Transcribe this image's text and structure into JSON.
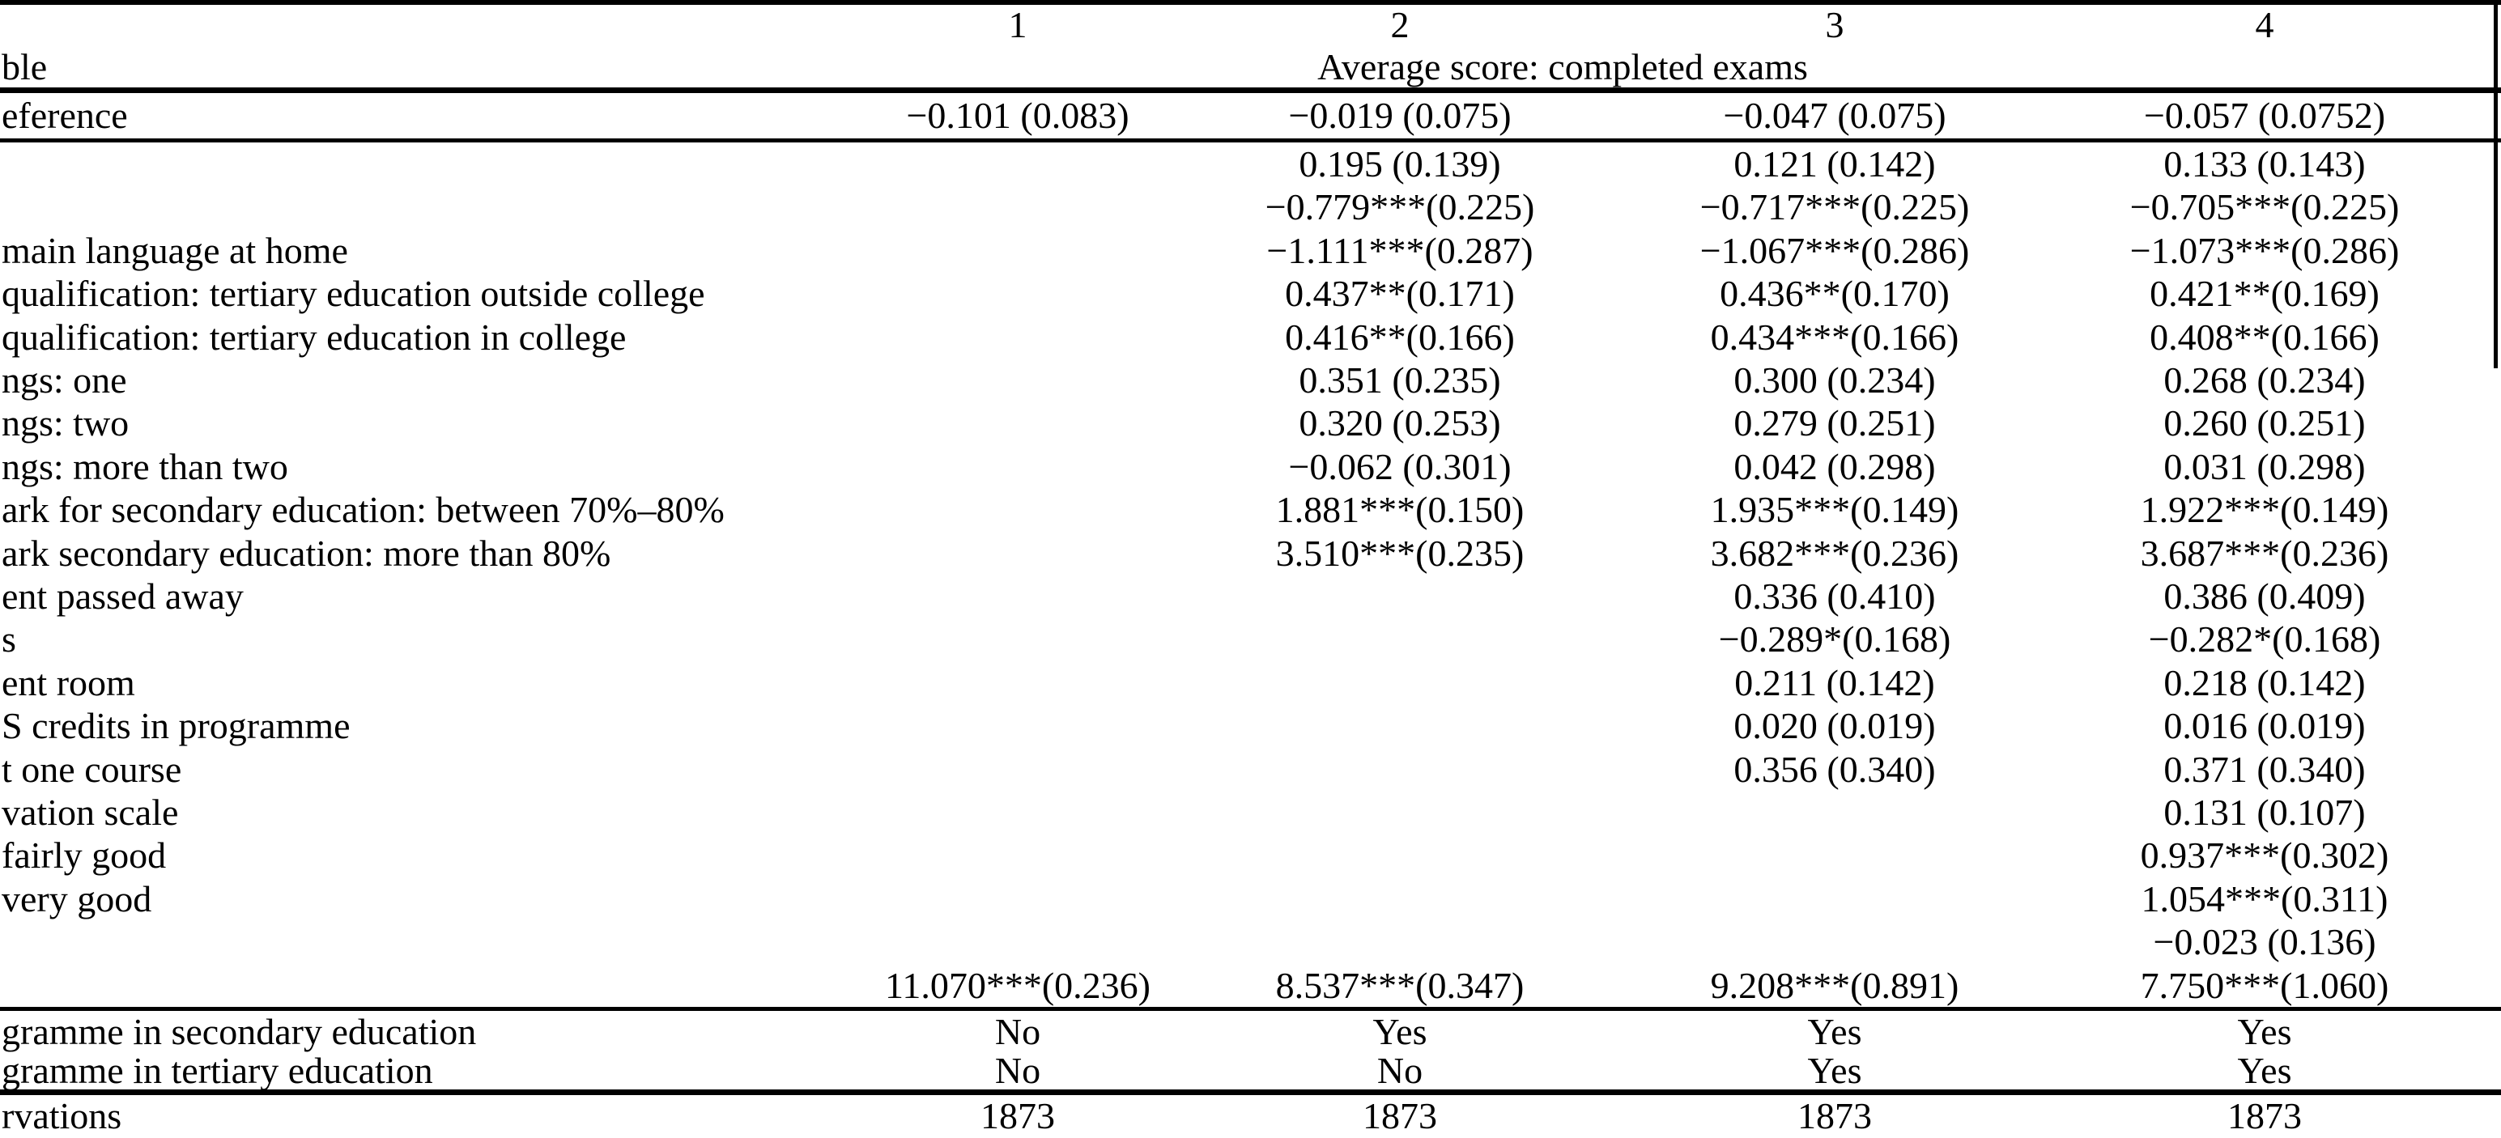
{
  "table": {
    "kind": "regression-table",
    "col_headers": [
      "1",
      "2",
      "3",
      "4"
    ],
    "left_header": "ble",
    "span_header": "Average score: completed exams",
    "top_row": {
      "label": "eference",
      "values": [
        "−0.101 (0.083)",
        "−0.019 (0.075)",
        "−0.047 (0.075)",
        "−0.057 (0.0752)"
      ]
    },
    "body_rows": [
      {
        "label": "",
        "values": [
          "",
          "0.195 (0.139)",
          "0.121 (0.142)",
          "0.133 (0.143)"
        ]
      },
      {
        "label": "",
        "values": [
          "",
          "−0.779***(0.225)",
          "−0.717***(0.225)",
          "−0.705***(0.225)"
        ]
      },
      {
        "label": "main language at home",
        "values": [
          "",
          "−1.111***(0.287)",
          "−1.067***(0.286)",
          "−1.073***(0.286)"
        ]
      },
      {
        "label": "qualification: tertiary education outside college",
        "values": [
          "",
          "0.437**(0.171)",
          "0.436**(0.170)",
          "0.421**(0.169)"
        ]
      },
      {
        "label": "qualification: tertiary education in college",
        "values": [
          "",
          "0.416**(0.166)",
          "0.434***(0.166)",
          "0.408**(0.166)"
        ]
      },
      {
        "label": "ngs: one",
        "values": [
          "",
          "0.351 (0.235)",
          "0.300 (0.234)",
          "0.268 (0.234)"
        ]
      },
      {
        "label": "ngs: two",
        "values": [
          "",
          "0.320 (0.253)",
          "0.279 (0.251)",
          "0.260 (0.251)"
        ]
      },
      {
        "label": "ngs: more than two",
        "values": [
          "",
          "−0.062 (0.301)",
          "0.042 (0.298)",
          "0.031 (0.298)"
        ]
      },
      {
        "label": "ark for secondary education: between 70%–80%",
        "values": [
          "",
          "1.881***(0.150)",
          "1.935***(0.149)",
          "1.922***(0.149)"
        ]
      },
      {
        "label": "ark secondary education: more than 80%",
        "values": [
          "",
          "3.510***(0.235)",
          "3.682***(0.236)",
          "3.687***(0.236)"
        ]
      },
      {
        "label": "ent passed away",
        "values": [
          "",
          "",
          "0.336 (0.410)",
          "0.386 (0.409)"
        ]
      },
      {
        "label": "s",
        "values": [
          "",
          "",
          "−0.289*(0.168)",
          "−0.282*(0.168)"
        ]
      },
      {
        "label": "ent room",
        "values": [
          "",
          "",
          "0.211 (0.142)",
          "0.218 (0.142)"
        ]
      },
      {
        "label": "S credits in programme",
        "values": [
          "",
          "",
          "0.020 (0.019)",
          "0.016 (0.019)"
        ]
      },
      {
        "label": "t one course",
        "values": [
          "",
          "",
          "0.356 (0.340)",
          "0.371 (0.340)"
        ]
      },
      {
        "label": "vation scale",
        "values": [
          "",
          "",
          "",
          "0.131 (0.107)"
        ]
      },
      {
        "label": "fairly good",
        "values": [
          "",
          "",
          "",
          "0.937***(0.302)"
        ]
      },
      {
        "label": "very good",
        "values": [
          "",
          "",
          "",
          "1.054***(0.311)"
        ]
      },
      {
        "label": "",
        "values": [
          "",
          "",
          "",
          "−0.023 (0.136)"
        ]
      },
      {
        "label": "",
        "values": [
          "11.070***(0.236)",
          "8.537***(0.347)",
          "9.208***(0.891)",
          "7.750***(1.060)"
        ]
      }
    ],
    "footer_rows": [
      {
        "label": "gramme in secondary education",
        "values": [
          "No",
          "Yes",
          "Yes",
          "Yes"
        ]
      },
      {
        "label": "gramme in tertiary education",
        "values": [
          "No",
          "No",
          "Yes",
          "Yes"
        ]
      },
      {
        "label": "rvations",
        "values": [
          "1873",
          "1873",
          "1873",
          "1873"
        ]
      }
    ]
  },
  "colors": {
    "text": "#000000",
    "background": "#ffffff",
    "rule": "#000000"
  }
}
